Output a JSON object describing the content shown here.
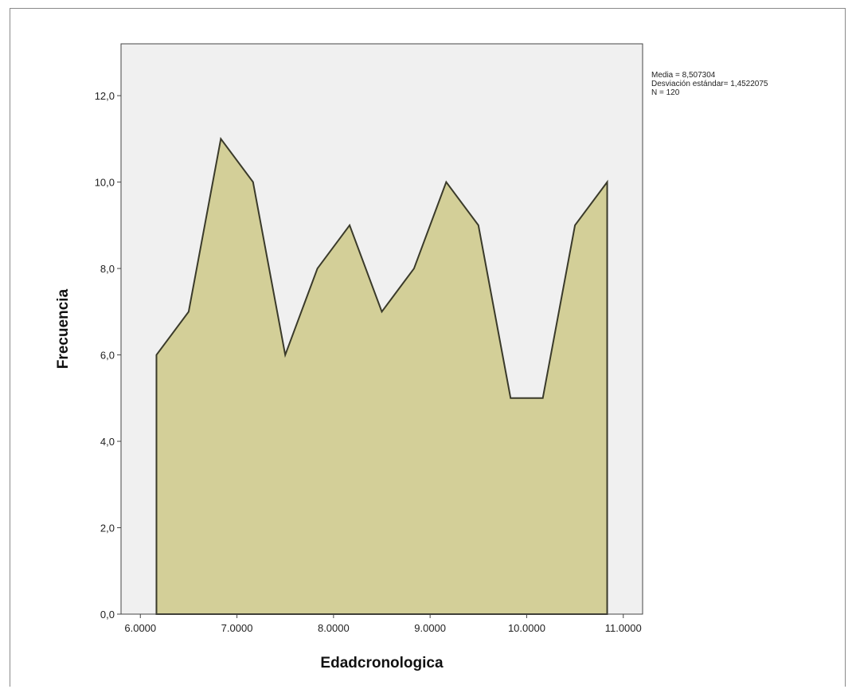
{
  "chart_data": {
    "type": "area",
    "title": "",
    "xlabel": "Edadcronologica",
    "ylabel": "Frecuencia",
    "x": [
      6.1667,
      6.5,
      6.8333,
      7.1667,
      7.5,
      7.8333,
      8.1667,
      8.5,
      8.8333,
      9.1667,
      9.5,
      9.8333,
      10.1667,
      10.5,
      10.8333
    ],
    "y": [
      6,
      7,
      11,
      10,
      6,
      8,
      9,
      7,
      8,
      10,
      9,
      5,
      5,
      9,
      10
    ],
    "xlim": [
      5.8,
      11.2
    ],
    "ylim": [
      0,
      13.2
    ],
    "x_ticks": [
      {
        "value": 6,
        "label": "6.0000"
      },
      {
        "value": 7,
        "label": "7.0000"
      },
      {
        "value": 8,
        "label": "8.0000"
      },
      {
        "value": 9,
        "label": "9.0000"
      },
      {
        "value": 10,
        "label": "10.0000"
      },
      {
        "value": 11,
        "label": "11.0000"
      }
    ],
    "y_ticks": [
      {
        "value": 0,
        "label": "0,0"
      },
      {
        "value": 2,
        "label": "2,0"
      },
      {
        "value": 4,
        "label": "4,0"
      },
      {
        "value": 6,
        "label": "6,0"
      },
      {
        "value": 8,
        "label": "8,0"
      },
      {
        "value": 10,
        "label": "10,0"
      },
      {
        "value": 12,
        "label": "12,0"
      }
    ],
    "grid": false,
    "stats": [
      "Media = 8,507304",
      "Desviación estándar= 1,4522075",
      "N = 120"
    ],
    "colors": {
      "fill": "#d3cf98",
      "line": "#3a3a2a",
      "plot_background": "#f0f0f0",
      "axis": "#444444"
    }
  }
}
